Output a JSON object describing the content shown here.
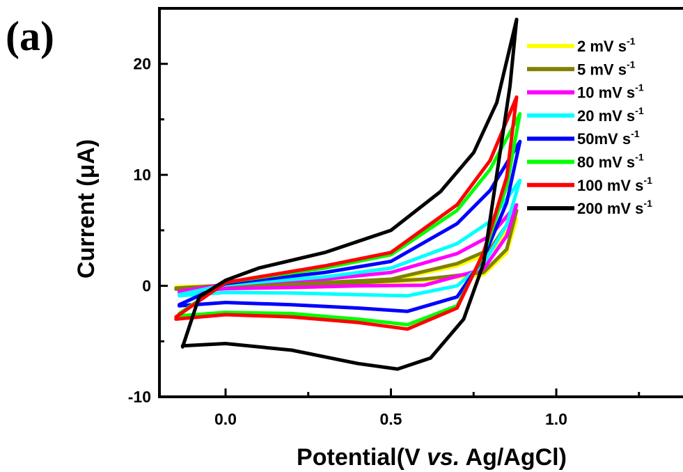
{
  "panel_label": "(a)",
  "chart_data": {
    "type": "line",
    "title": "",
    "xlabel_prefix": "Potential(V ",
    "xlabel_italic": "vs.",
    "xlabel_suffix": " Ag/AgCl)",
    "ylabel": "Current (μA)",
    "xlim": [
      -0.2,
      1.4
    ],
    "ylim": [
      -10,
      25
    ],
    "xticks": [
      0.0,
      0.5,
      1.0
    ],
    "xtick_labels": [
      "0.0",
      "0.5",
      "1.0"
    ],
    "yticks": [
      -10,
      0,
      10,
      20
    ],
    "ytick_labels": [
      "-10",
      "0",
      "10",
      "20"
    ],
    "grid": false,
    "legend_position": "top-right",
    "series": [
      {
        "name": "2 mV s",
        "name_sup": "-1",
        "color": "#ffff00",
        "vmax": 0.88,
        "vmin": -0.15,
        "upper": [
          [
            -0.15,
            -0.1
          ],
          [
            0.0,
            0.05
          ],
          [
            0.3,
            0.2
          ],
          [
            0.5,
            0.5
          ],
          [
            0.7,
            1.8
          ],
          [
            0.8,
            3.0
          ],
          [
            0.88,
            6.0
          ]
        ],
        "lower": [
          [
            0.88,
            6.0
          ],
          [
            0.85,
            3.0
          ],
          [
            0.78,
            1.0
          ],
          [
            0.6,
            0.5
          ],
          [
            0.3,
            0.05
          ],
          [
            0.0,
            -0.2
          ],
          [
            -0.15,
            -0.2
          ]
        ]
      },
      {
        "name": "5 mV s",
        "name_sup": "-1",
        "color": "#808000",
        "vmax": 0.88,
        "vmin": -0.15,
        "upper": [
          [
            -0.15,
            -0.2
          ],
          [
            0.0,
            0.05
          ],
          [
            0.3,
            0.3
          ],
          [
            0.5,
            0.6
          ],
          [
            0.7,
            2.0
          ],
          [
            0.8,
            3.3
          ],
          [
            0.88,
            6.8
          ]
        ],
        "lower": [
          [
            0.88,
            6.8
          ],
          [
            0.85,
            3.3
          ],
          [
            0.78,
            1.2
          ],
          [
            0.6,
            0.6
          ],
          [
            0.3,
            0.1
          ],
          [
            0.0,
            -0.1
          ],
          [
            -0.15,
            -0.3
          ]
        ]
      },
      {
        "name": "10 mV s",
        "name_sup": "-1",
        "color": "#ff00ff",
        "vmax": 0.88,
        "vmin": -0.14,
        "upper": [
          [
            -0.14,
            -0.5
          ],
          [
            0.0,
            0.15
          ],
          [
            0.3,
            0.6
          ],
          [
            0.5,
            1.2
          ],
          [
            0.7,
            2.9
          ],
          [
            0.8,
            4.5
          ],
          [
            0.88,
            7.3
          ]
        ],
        "lower": [
          [
            0.88,
            7.3
          ],
          [
            0.85,
            4.5
          ],
          [
            0.78,
            1.5
          ],
          [
            0.6,
            0.05
          ],
          [
            0.4,
            0.0
          ],
          [
            0.2,
            -0.15
          ],
          [
            0.0,
            -0.25
          ],
          [
            -0.14,
            -0.6
          ]
        ]
      },
      {
        "name": "20 mV s",
        "name_sup": "-1",
        "color": "#00ffff",
        "vmax": 0.89,
        "vmin": -0.14,
        "upper": [
          [
            -0.14,
            -0.8
          ],
          [
            0.0,
            0.1
          ],
          [
            0.3,
            0.8
          ],
          [
            0.5,
            1.6
          ],
          [
            0.7,
            3.8
          ],
          [
            0.8,
            5.8
          ],
          [
            0.89,
            9.5
          ]
        ],
        "lower": [
          [
            0.89,
            9.5
          ],
          [
            0.85,
            5.5
          ],
          [
            0.78,
            2.0
          ],
          [
            0.7,
            0.0
          ],
          [
            0.55,
            -0.9
          ],
          [
            0.4,
            -0.8
          ],
          [
            0.2,
            -0.65
          ],
          [
            0.0,
            -0.6
          ],
          [
            -0.14,
            -0.9
          ]
        ]
      },
      {
        "name": "50mV s",
        "name_sup": "-1",
        "color": "#0000ff",
        "vmax": 0.89,
        "vmin": -0.14,
        "upper": [
          [
            -0.14,
            -1.7
          ],
          [
            0.0,
            0.2
          ],
          [
            0.3,
            1.2
          ],
          [
            0.5,
            2.2
          ],
          [
            0.7,
            5.6
          ],
          [
            0.8,
            8.6
          ],
          [
            0.89,
            13.0
          ]
        ],
        "lower": [
          [
            0.89,
            13.0
          ],
          [
            0.85,
            7.5
          ],
          [
            0.78,
            2.5
          ],
          [
            0.7,
            -1.0
          ],
          [
            0.55,
            -2.3
          ],
          [
            0.4,
            -2.0
          ],
          [
            0.2,
            -1.7
          ],
          [
            0.0,
            -1.5
          ],
          [
            -0.14,
            -1.8
          ]
        ]
      },
      {
        "name": "80 mV s",
        "name_sup": "-1",
        "color": "#00ff00",
        "vmax": 0.89,
        "vmin": -0.14,
        "upper": [
          [
            -0.14,
            -2.5
          ],
          [
            0.0,
            0.3
          ],
          [
            0.3,
            1.6
          ],
          [
            0.5,
            2.8
          ],
          [
            0.7,
            6.8
          ],
          [
            0.8,
            10.5
          ],
          [
            0.89,
            15.5
          ]
        ],
        "lower": [
          [
            0.89,
            15.5
          ],
          [
            0.85,
            9.0
          ],
          [
            0.78,
            2.8
          ],
          [
            0.7,
            -1.8
          ],
          [
            0.55,
            -3.5
          ],
          [
            0.4,
            -3.0
          ],
          [
            0.2,
            -2.5
          ],
          [
            0.0,
            -2.4
          ],
          [
            -0.14,
            -2.7
          ]
        ]
      },
      {
        "name": "100 mV s",
        "name_sup": "-1",
        "color": "#ff0000",
        "vmax": 0.88,
        "vmin": -0.15,
        "upper": [
          [
            -0.15,
            -2.8
          ],
          [
            0.0,
            0.3
          ],
          [
            0.3,
            1.8
          ],
          [
            0.5,
            3.0
          ],
          [
            0.7,
            7.3
          ],
          [
            0.8,
            11.3
          ],
          [
            0.88,
            17.0
          ]
        ],
        "lower": [
          [
            0.88,
            17.0
          ],
          [
            0.85,
            9.8
          ],
          [
            0.78,
            3.0
          ],
          [
            0.7,
            -2.0
          ],
          [
            0.55,
            -3.9
          ],
          [
            0.4,
            -3.3
          ],
          [
            0.2,
            -2.8
          ],
          [
            0.0,
            -2.6
          ],
          [
            -0.15,
            -3.0
          ]
        ]
      },
      {
        "name": "200 mV s",
        "name_sup": "-1",
        "color": "#000000",
        "vmax": 0.88,
        "vmin": -0.13,
        "upper": [
          [
            -0.13,
            -5.5
          ],
          [
            -0.08,
            -1.0
          ],
          [
            0.0,
            0.5
          ],
          [
            0.1,
            1.6
          ],
          [
            0.3,
            3.0
          ],
          [
            0.5,
            5.0
          ],
          [
            0.65,
            8.5
          ],
          [
            0.75,
            12.0
          ],
          [
            0.82,
            16.5
          ],
          [
            0.88,
            24.0
          ]
        ],
        "lower": [
          [
            0.88,
            24.0
          ],
          [
            0.86,
            18.0
          ],
          [
            0.82,
            10.0
          ],
          [
            0.78,
            2.0
          ],
          [
            0.72,
            -3.0
          ],
          [
            0.62,
            -6.5
          ],
          [
            0.52,
            -7.5
          ],
          [
            0.4,
            -7.0
          ],
          [
            0.2,
            -5.8
          ],
          [
            0.0,
            -5.2
          ],
          [
            -0.13,
            -5.4
          ]
        ]
      }
    ]
  }
}
